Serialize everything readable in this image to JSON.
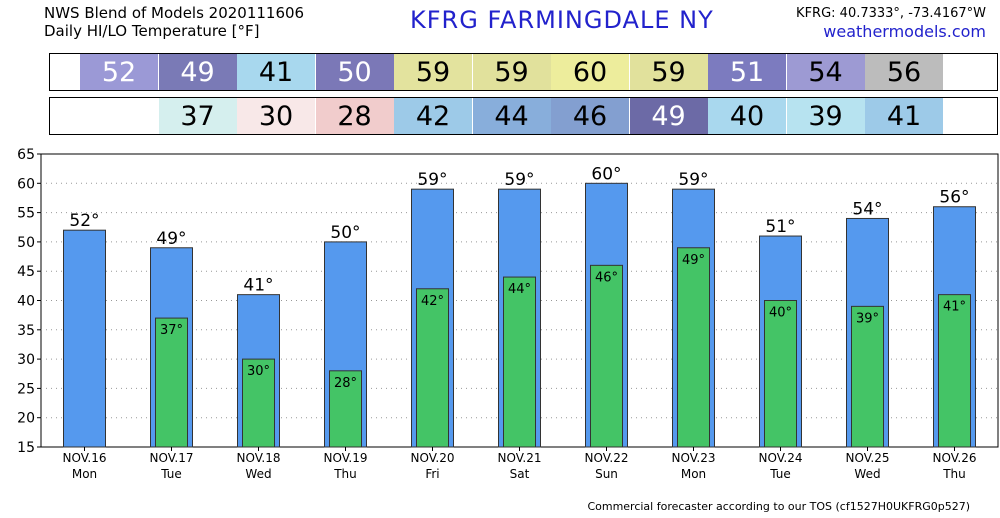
{
  "header": {
    "title_line1": "NWS Blend of Models 2020111606",
    "title_line2": "Daily HI/LO Temperature [°F]",
    "station": "KFRG   FARMINGDALE     NY",
    "coords": "KFRG: 40.7333°, -73.4167°W",
    "site": "weathermodels.com"
  },
  "footer": "Commercial forecaster according to our TOS (cf1527H0UKFRG0p527)",
  "strip_hi": {
    "values": [
      52,
      49,
      41,
      50,
      59,
      59,
      60,
      59,
      51,
      54,
      56
    ],
    "colors": [
      "#9b99d6",
      "#7a7ab6",
      "#a8d8ee",
      "#7b78b7",
      "#e3e39e",
      "#e1e19c",
      "#eded9c",
      "#e1e19c",
      "#7c7bbf",
      "#9d9ad3",
      "#bcbcbc"
    ],
    "text_colors": [
      "#ffffff",
      "#ffffff",
      "#000000",
      "#ffffff",
      "#000000",
      "#000000",
      "#000000",
      "#000000",
      "#ffffff",
      "#000000",
      "#000000"
    ]
  },
  "strip_lo": {
    "values": [
      "",
      37,
      30,
      28,
      42,
      44,
      46,
      49,
      40,
      39,
      41
    ],
    "colors": [
      "#ffffff",
      "#d5efee",
      "#f8e8e8",
      "#f1cccc",
      "#9dcae8",
      "#88aedb",
      "#839fd0",
      "#6c6aa6",
      "#a9d8ee",
      "#b7e3f0",
      "#9dcae8"
    ],
    "text_colors": [
      "#000000",
      "#000000",
      "#000000",
      "#000000",
      "#000000",
      "#000000",
      "#000000",
      "#ffffff",
      "#000000",
      "#000000",
      "#000000"
    ]
  },
  "chart_data": {
    "type": "bar",
    "categories": [
      "NOV.16",
      "NOV.17",
      "NOV.18",
      "NOV.19",
      "NOV.20",
      "NOV.21",
      "NOV.22",
      "NOV.23",
      "NOV.24",
      "NOV.25",
      "NOV.26"
    ],
    "days": [
      "Mon",
      "Tue",
      "Wed",
      "Thu",
      "Fri",
      "Sat",
      "Sun",
      "Mon",
      "Tue",
      "Wed",
      "Thu"
    ],
    "series": [
      {
        "values": [
          52,
          49,
          41,
          50,
          59,
          59,
          60,
          59,
          51,
          54,
          56
        ],
        "color": "#5599ee"
      },
      {
        "values": [
          null,
          37,
          30,
          28,
          42,
          44,
          46,
          49,
          40,
          39,
          41
        ],
        "color": "#44c466"
      }
    ],
    "hi_labels": [
      "52°",
      "49°",
      "41°",
      "50°",
      "59°",
      "59°",
      "60°",
      "59°",
      "51°",
      "54°",
      "56°"
    ],
    "lo_labels": [
      "",
      "37°",
      "30°",
      "28°",
      "42°",
      "44°",
      "46°",
      "49°",
      "40°",
      "39°",
      "41°"
    ],
    "ylim": [
      15,
      65
    ],
    "yticks": [
      "15",
      "20",
      "25",
      "30",
      "35",
      "40",
      "45",
      "50",
      "55",
      "60",
      "65"
    ],
    "grid": true
  }
}
